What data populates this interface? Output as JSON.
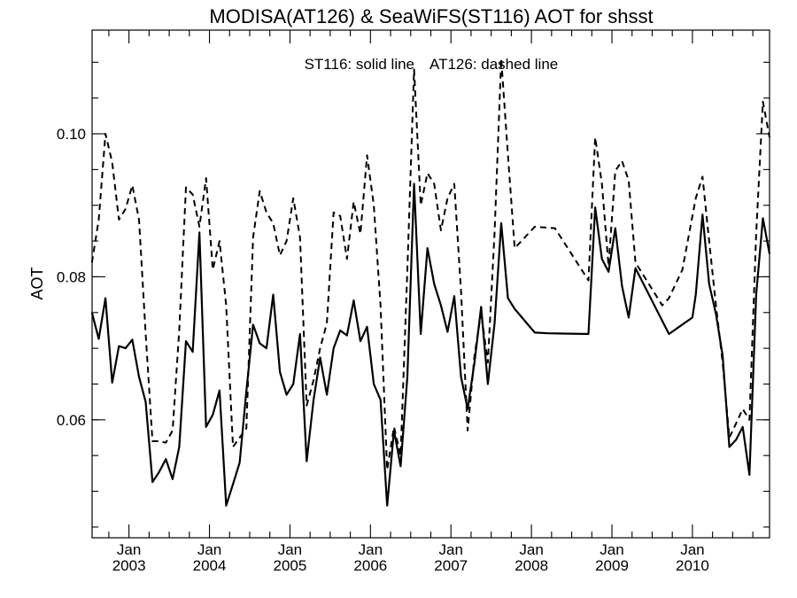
{
  "chart_data": {
    "type": "line",
    "title": "MODISA(AT126) & SeaWiFS(ST116)  AOT for shsst",
    "annotation_solid": "ST116: solid line",
    "annotation_dashed": "AT126: dashed line",
    "ylabel": "AOT",
    "xlabel": "",
    "xlim": [
      2002.542,
      2010.958
    ],
    "ylim": [
      0.0435,
      0.1145
    ],
    "grid": false,
    "y_ticks": [
      {
        "value": 0.06,
        "label": "0.06"
      },
      {
        "value": 0.08,
        "label": "0.08"
      },
      {
        "value": 0.1,
        "label": "0.10"
      }
    ],
    "x_ticks": [
      {
        "value": 2003.0,
        "month": "Jan",
        "year": "2003"
      },
      {
        "value": 2004.0,
        "month": "Jan",
        "year": "2004"
      },
      {
        "value": 2005.0,
        "month": "Jan",
        "year": "2005"
      },
      {
        "value": 2006.0,
        "month": "Jan",
        "year": "2006"
      },
      {
        "value": 2007.0,
        "month": "Jan",
        "year": "2007"
      },
      {
        "value": 2008.0,
        "month": "Jan",
        "year": "2008"
      },
      {
        "value": 2009.0,
        "month": "Jan",
        "year": "2009"
      },
      {
        "value": 2010.0,
        "month": "Jan",
        "year": "2010"
      }
    ],
    "series": [
      {
        "name": "ST116",
        "style": "solid",
        "x": [
          2002.54,
          2002.625,
          2002.708,
          2002.792,
          2002.875,
          2002.958,
          2003.042,
          2003.125,
          2003.208,
          2003.292,
          2003.375,
          2003.458,
          2003.542,
          2003.625,
          2003.708,
          2003.792,
          2003.875,
          2003.958,
          2004.042,
          2004.125,
          2004.208,
          2004.292,
          2004.375,
          2004.458,
          2004.542,
          2004.625,
          2004.708,
          2004.792,
          2004.875,
          2004.958,
          2005.042,
          2005.125,
          2005.208,
          2005.292,
          2005.375,
          2005.458,
          2005.542,
          2005.625,
          2005.708,
          2005.792,
          2005.875,
          2005.958,
          2006.042,
          2006.125,
          2006.208,
          2006.292,
          2006.375,
          2006.458,
          2006.542,
          2006.625,
          2006.708,
          2006.792,
          2006.875,
          2006.958,
          2007.042,
          2007.125,
          2007.208,
          2007.292,
          2007.375,
          2007.458,
          2007.542,
          2007.625,
          2007.708,
          2007.792,
          2007.875,
          2007.958,
          2008.042,
          2008.208,
          2008.708,
          2008.792,
          2008.875,
          2008.958,
          2009.042,
          2009.125,
          2009.208,
          2009.292,
          2009.708,
          2010.0,
          2010.042,
          2010.125,
          2010.208,
          2010.292,
          2010.375,
          2010.458,
          2010.542,
          2010.625,
          2010.708,
          2010.792,
          2010.875,
          2010.958
        ],
        "y": [
          0.075,
          0.0713,
          0.077,
          0.0652,
          0.0703,
          0.07,
          0.0712,
          0.066,
          0.0625,
          0.0513,
          0.0527,
          0.0545,
          0.0517,
          0.0562,
          0.071,
          0.0695,
          0.0862,
          0.059,
          0.0607,
          0.0641,
          0.048,
          0.051,
          0.054,
          0.064,
          0.0733,
          0.0707,
          0.07,
          0.0775,
          0.0667,
          0.0635,
          0.065,
          0.072,
          0.0542,
          0.0627,
          0.0687,
          0.0635,
          0.07,
          0.0725,
          0.0718,
          0.0767,
          0.071,
          0.073,
          0.065,
          0.0628,
          0.048,
          0.0585,
          0.0535,
          0.066,
          0.093,
          0.072,
          0.084,
          0.079,
          0.076,
          0.0723,
          0.0773,
          0.066,
          0.0615,
          0.068,
          0.0758,
          0.065,
          0.0735,
          0.0875,
          0.077,
          0.0755,
          0.0744,
          0.0733,
          0.0722,
          0.0721,
          0.072,
          0.0897,
          0.0825,
          0.0807,
          0.0868,
          0.0787,
          0.0743,
          0.0812,
          0.072,
          0.0743,
          0.0775,
          0.0887,
          0.079,
          0.0748,
          0.069,
          0.0562,
          0.0572,
          0.059,
          0.0523,
          0.0775,
          0.0882,
          0.0832
        ]
      },
      {
        "name": "AT126",
        "style": "dashed",
        "x": [
          2002.54,
          2002.625,
          2002.708,
          2002.792,
          2002.875,
          2002.958,
          2003.042,
          2003.125,
          2003.208,
          2003.292,
          2003.375,
          2003.458,
          2003.542,
          2003.625,
          2003.708,
          2003.792,
          2003.875,
          2003.958,
          2004.042,
          2004.125,
          2004.208,
          2004.292,
          2004.375,
          2004.458,
          2004.542,
          2004.625,
          2004.708,
          2004.792,
          2004.875,
          2004.958,
          2005.042,
          2005.125,
          2005.208,
          2005.292,
          2005.375,
          2005.458,
          2005.542,
          2005.625,
          2005.708,
          2005.792,
          2005.875,
          2005.958,
          2006.042,
          2006.125,
          2006.208,
          2006.292,
          2006.375,
          2006.458,
          2006.542,
          2006.625,
          2006.708,
          2006.792,
          2006.875,
          2006.958,
          2007.042,
          2007.125,
          2007.208,
          2007.292,
          2007.375,
          2007.458,
          2007.542,
          2007.625,
          2007.708,
          2007.792,
          2007.875,
          2007.958,
          2008.042,
          2008.292,
          2008.708,
          2008.792,
          2008.875,
          2008.958,
          2009.042,
          2009.125,
          2009.208,
          2009.292,
          2009.625,
          2009.708,
          2009.875,
          2009.958,
          2010.042,
          2010.125,
          2010.208,
          2010.292,
          2010.375,
          2010.458,
          2010.542,
          2010.625,
          2010.708,
          2010.792,
          2010.875,
          2010.958
        ],
        "y": [
          0.082,
          0.088,
          0.1,
          0.096,
          0.088,
          0.0895,
          0.0928,
          0.088,
          0.072,
          0.057,
          0.057,
          0.0568,
          0.0585,
          0.0725,
          0.0925,
          0.0915,
          0.087,
          0.0938,
          0.081,
          0.085,
          0.076,
          0.0562,
          0.0575,
          0.0588,
          0.0855,
          0.092,
          0.089,
          0.0875,
          0.083,
          0.085,
          0.091,
          0.0855,
          0.062,
          0.0655,
          0.07,
          0.0735,
          0.089,
          0.0885,
          0.0825,
          0.0905,
          0.086,
          0.097,
          0.09,
          0.076,
          0.053,
          0.059,
          0.055,
          0.081,
          0.109,
          0.09,
          0.0945,
          0.093,
          0.0865,
          0.091,
          0.093,
          0.078,
          0.0585,
          0.069,
          0.075,
          0.068,
          0.0862,
          0.1105,
          0.097,
          0.084,
          0.085,
          0.086,
          0.087,
          0.0868,
          0.0795,
          0.0995,
          0.093,
          0.0815,
          0.0948,
          0.0962,
          0.0935,
          0.082,
          0.076,
          0.077,
          0.081,
          0.086,
          0.091,
          0.094,
          0.085,
          0.076,
          0.068,
          0.0575,
          0.0595,
          0.0615,
          0.06,
          0.086,
          0.1045,
          0.0995
        ]
      }
    ]
  }
}
